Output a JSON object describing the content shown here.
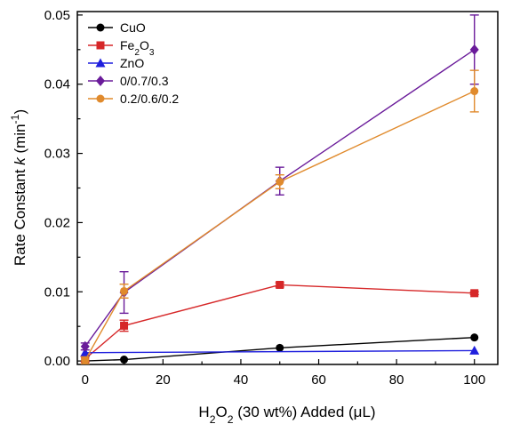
{
  "chart_data": {
    "type": "line",
    "xlabel_parts": [
      "H",
      "2",
      "O",
      "2",
      " (30 wt%) Added (μL)"
    ],
    "ylabel_parts": [
      "Rate Constant ",
      "k",
      " (min",
      "-1",
      ")"
    ],
    "xlim": [
      -2,
      106
    ],
    "ylim": [
      -0.0005,
      0.0505
    ],
    "xticks": [
      0,
      20,
      40,
      60,
      80,
      100
    ],
    "xtick_labels": [
      "0",
      "20",
      "40",
      "60",
      "80",
      "100"
    ],
    "yticks": [
      0.0,
      0.01,
      0.02,
      0.03,
      0.04,
      0.05
    ],
    "ytick_labels": [
      "0.00",
      "0.01",
      "0.02",
      "0.03",
      "0.04",
      "0.05"
    ],
    "legend_position": "top-left",
    "grid": false,
    "x": [
      0,
      10,
      50,
      100
    ],
    "series": [
      {
        "name_parts": [
          "CuO"
        ],
        "color": "#000000",
        "marker": "circle",
        "x": [
          0,
          10,
          50,
          100
        ],
        "values": [
          0.0,
          0.0002,
          0.0019,
          0.0034
        ],
        "errors": [
          0,
          0,
          0,
          0
        ]
      },
      {
        "name_parts": [
          "Fe",
          "2",
          "O",
          "3"
        ],
        "color": "#d62728",
        "marker": "square",
        "x": [
          0,
          10,
          50,
          100
        ],
        "values": [
          0.0003,
          0.0051,
          0.011,
          0.0098
        ],
        "errors": [
          0.0004,
          0.0008,
          0.0003,
          0.0002
        ]
      },
      {
        "name_parts": [
          "ZnO"
        ],
        "color": "#1f1fdd",
        "marker": "triangle",
        "x": [
          0,
          100
        ],
        "values": [
          0.0012,
          0.0015
        ],
        "errors": [
          0,
          0
        ]
      },
      {
        "name_parts": [
          "0/0.7/0.3"
        ],
        "color": "#6a1b9a",
        "marker": "diamond",
        "x": [
          0,
          10,
          50,
          100
        ],
        "values": [
          0.0021,
          0.0099,
          0.026,
          0.045
        ],
        "errors": [
          0.0005,
          0.003,
          0.002,
          0.005
        ]
      },
      {
        "name_parts": [
          "0.2/0.6/0.2"
        ],
        "color": "#e08a2c",
        "marker": "circle",
        "x": [
          0,
          10,
          50,
          100
        ],
        "values": [
          0.0001,
          0.0101,
          0.0259,
          0.039
        ],
        "errors": [
          0.0005,
          0.001,
          0.001,
          0.003
        ]
      }
    ]
  }
}
